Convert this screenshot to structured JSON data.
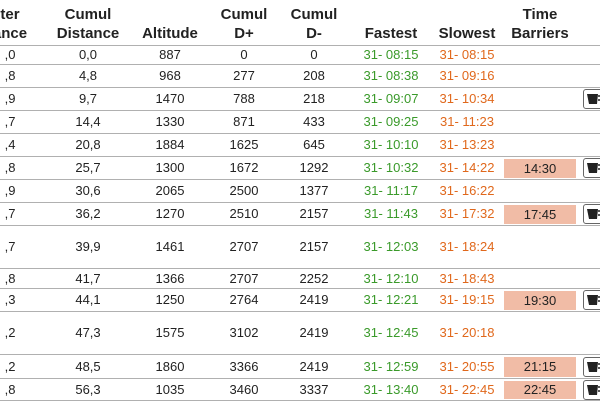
{
  "columns": [
    {
      "name": "col-water-distance",
      "line1": "ter",
      "line2": "ance"
    },
    {
      "name": "col-cumul-distance",
      "line1": "Cumul",
      "line2": "Distance"
    },
    {
      "name": "col-altitude",
      "line1": "",
      "line2": "Altitude"
    },
    {
      "name": "col-cumul-dplus",
      "line1": "Cumul",
      "line2": "D+"
    },
    {
      "name": "col-cumul-dminus",
      "line1": "Cumul",
      "line2": "D-"
    },
    {
      "name": "col-fastest",
      "line1": "",
      "line2": "Fastest"
    },
    {
      "name": "col-slowest",
      "line1": "",
      "line2": "Slowest"
    },
    {
      "name": "col-time-barriers",
      "line1": "Time",
      "line2": "Barriers"
    }
  ],
  "rows": [
    {
      "d": ",0",
      "cd": "0,0",
      "alt": "887",
      "dp": "0",
      "dm": "0",
      "fast": "31- 08:15",
      "slow": "31- 08:15",
      "barrier": "",
      "cup": false
    },
    {
      "d": ",8",
      "cd": "4,8",
      "alt": "968",
      "dp": "277",
      "dm": "208",
      "fast": "31- 08:38",
      "slow": "31- 09:16",
      "barrier": "",
      "cup": false
    },
    {
      "d": ",9",
      "cd": "9,7",
      "alt": "1470",
      "dp": "788",
      "dm": "218",
      "fast": "31- 09:07",
      "slow": "31- 10:34",
      "barrier": "",
      "cup": true
    },
    {
      "d": ",7",
      "cd": "14,4",
      "alt": "1330",
      "dp": "871",
      "dm": "433",
      "fast": "31- 09:25",
      "slow": "31- 11:23",
      "barrier": "",
      "cup": false
    },
    {
      "d": ",4",
      "cd": "20,8",
      "alt": "1884",
      "dp": "1625",
      "dm": "645",
      "fast": "31- 10:10",
      "slow": "31- 13:23",
      "barrier": "",
      "cup": false
    },
    {
      "d": ",8",
      "cd": "25,7",
      "alt": "1300",
      "dp": "1672",
      "dm": "1292",
      "fast": "31- 10:32",
      "slow": "31- 14:22",
      "barrier": "14:30",
      "cup": true
    },
    {
      "d": ",9",
      "cd": "30,6",
      "alt": "2065",
      "dp": "2500",
      "dm": "1377",
      "fast": "31- 11:17",
      "slow": "31- 16:22",
      "barrier": "",
      "cup": false
    },
    {
      "d": ",7",
      "cd": "36,2",
      "alt": "1270",
      "dp": "2510",
      "dm": "2157",
      "fast": "31- 11:43",
      "slow": "31- 17:32",
      "barrier": "17:45",
      "cup": true
    },
    {
      "d": ",7",
      "cd": "39,9",
      "alt": "1461",
      "dp": "2707",
      "dm": "2157",
      "fast": "31- 12:03",
      "slow": "31- 18:24",
      "barrier": "",
      "cup": false
    },
    {
      "d": ",8",
      "cd": "41,7",
      "alt": "1366",
      "dp": "2707",
      "dm": "2252",
      "fast": "31- 12:10",
      "slow": "31- 18:43",
      "barrier": "",
      "cup": false
    },
    {
      "d": ",3",
      "cd": "44,1",
      "alt": "1250",
      "dp": "2764",
      "dm": "2419",
      "fast": "31- 12:21",
      "slow": "31- 19:15",
      "barrier": "19:30",
      "cup": true
    },
    {
      "d": ",2",
      "cd": "47,3",
      "alt": "1575",
      "dp": "3102",
      "dm": "2419",
      "fast": "31- 12:45",
      "slow": "31- 20:18",
      "barrier": "",
      "cup": false
    },
    {
      "d": ",2",
      "cd": "48,5",
      "alt": "1860",
      "dp": "3366",
      "dm": "2419",
      "fast": "31- 12:59",
      "slow": "31- 20:55",
      "barrier": "21:15",
      "cup": true
    },
    {
      "d": ",8",
      "cd": "56,3",
      "alt": "1035",
      "dp": "3460",
      "dm": "3337",
      "fast": "31- 13:40",
      "slow": "31- 22:45",
      "barrier": "22:45",
      "cup": true
    }
  ],
  "colors": {
    "fastest": "#3a9a2a",
    "slowest": "#e0681c",
    "barrier_bg": "#f1bca6"
  },
  "icons": {
    "cup": "cup-icon"
  }
}
